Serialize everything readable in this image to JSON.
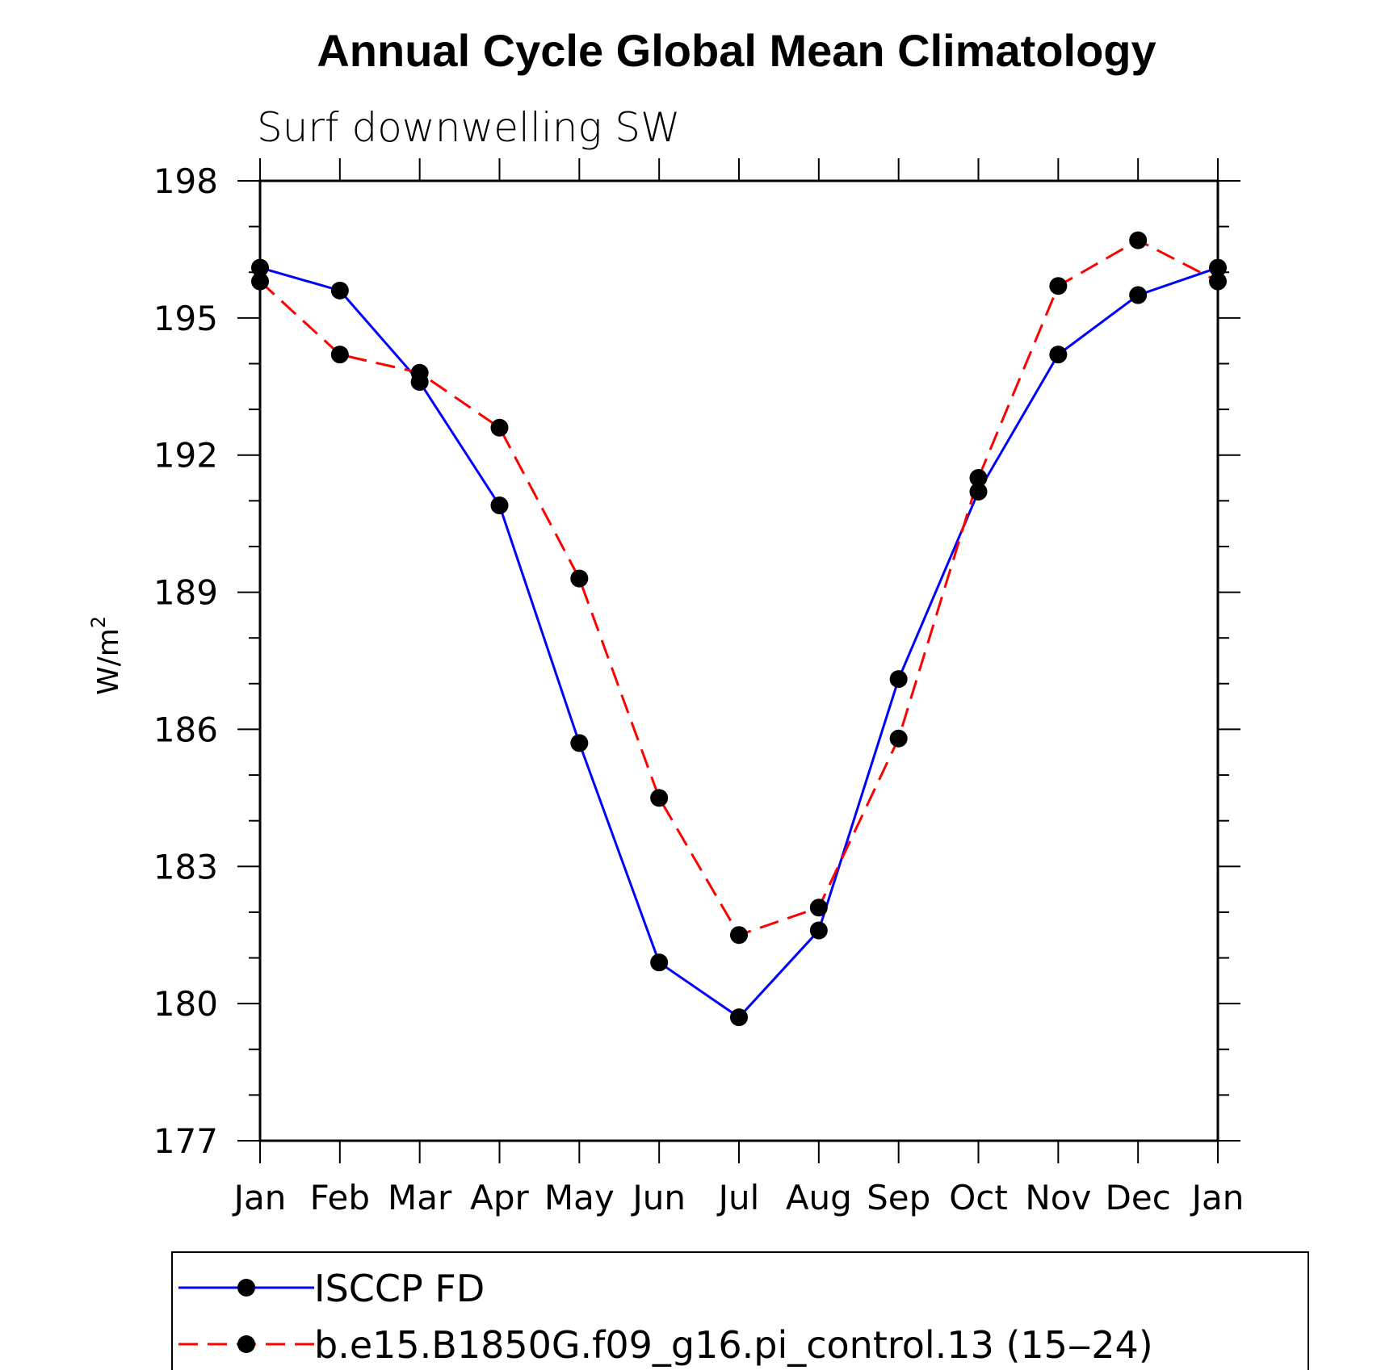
{
  "chart_data": {
    "type": "line",
    "title": "Annual Cycle Global Mean Climatology",
    "subtitle": "Surf downwelling SW",
    "xlabel": "",
    "ylabel": "W/m",
    "ylabel_superscript": "2",
    "categories": [
      "Jan",
      "Feb",
      "Mar",
      "Apr",
      "May",
      "Jun",
      "Jul",
      "Aug",
      "Sep",
      "Oct",
      "Nov",
      "Dec",
      "Jan"
    ],
    "ylim": [
      177,
      198
    ],
    "yticks": [
      177,
      180,
      183,
      186,
      189,
      192,
      195,
      198
    ],
    "y_minor_step": 1,
    "series": [
      {
        "name": "ISCCP FD",
        "color": "#0000ff",
        "dash": "solid",
        "marker": "filled-circle",
        "values": [
          196.1,
          195.6,
          193.6,
          190.9,
          185.7,
          180.9,
          179.7,
          181.6,
          187.1,
          191.2,
          194.2,
          195.5,
          196.1
        ]
      },
      {
        "name": "b.e15.B1850G.f09_g16.pi_control.13 (15‒24)",
        "color": "#ff0000",
        "dash": "dashed",
        "marker": "filled-circle",
        "values": [
          195.8,
          194.2,
          193.8,
          192.6,
          189.3,
          184.5,
          181.5,
          182.1,
          185.8,
          191.5,
          195.7,
          196.7,
          195.8
        ]
      }
    ],
    "legend_position": "bottom"
  }
}
